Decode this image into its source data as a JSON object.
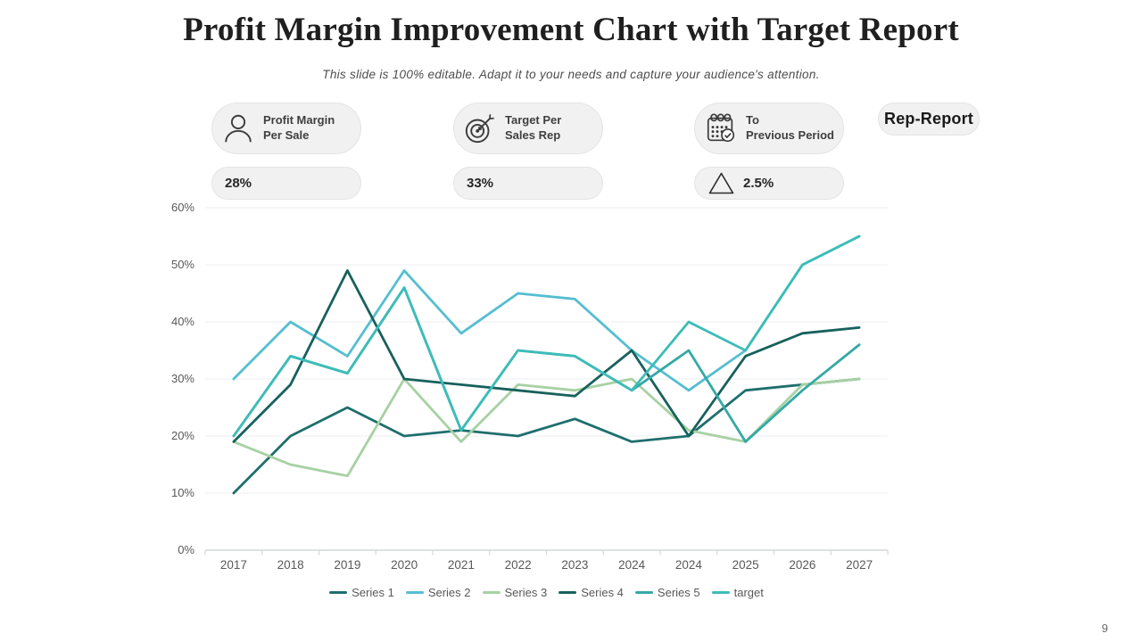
{
  "slide": {
    "title": "Profit Margin Improvement Chart with Target Report",
    "subtitle": "This slide is 100% editable. Adapt it to your needs and capture your audience's attention.",
    "page_number": "9"
  },
  "stats": [
    {
      "icon": "person-icon",
      "label_line1": "Profit Margin",
      "label_line2": "Per Sale",
      "value": "28%"
    },
    {
      "icon": "target-icon",
      "label_line1": "Target Per",
      "label_line2": "Sales Rep",
      "value": "33%"
    },
    {
      "icon": "calendar-check-icon",
      "label_line1": "To",
      "label_line2": "Previous Period",
      "value": "2.5%",
      "value_icon": "triangle-up-icon"
    }
  ],
  "rep_report_label": "Rep-Report",
  "colors": {
    "pill_background": "#f1f1f2",
    "pill_border": "#e4e4e6",
    "grid_line": "#edeff0",
    "axis_line": "#d6d8d8",
    "axis_text": "#595959"
  },
  "chart_data": {
    "type": "line",
    "title": "",
    "xlabel": "",
    "ylabel": "",
    "categories": [
      "2017",
      "2018",
      "2019",
      "2020",
      "2021",
      "2022",
      "2023",
      "2024",
      "2024",
      "2025",
      "2026",
      "2027"
    ],
    "series": [
      {
        "name": "Series 1",
        "color": "#1e6f6d",
        "values": [
          10,
          20,
          25,
          20,
          21,
          20,
          23,
          19,
          20,
          28,
          29,
          30
        ]
      },
      {
        "name": "Series 2",
        "color": "#55bed1",
        "values": [
          30,
          40,
          34,
          49,
          38,
          45,
          44,
          35,
          28,
          35,
          50,
          55
        ]
      },
      {
        "name": "Series 3",
        "color": "#a7d1a3",
        "values": [
          19,
          15,
          13,
          30,
          19,
          29,
          28,
          30,
          21,
          19,
          29,
          30
        ]
      },
      {
        "name": "Series 4",
        "color": "#17615c",
        "values": [
          19,
          29,
          49,
          30,
          29,
          28,
          27,
          35,
          20,
          34,
          38,
          39
        ]
      },
      {
        "name": "Series 5",
        "color": "#35a9a6",
        "values": [
          20,
          34,
          31,
          46,
          21,
          35,
          34,
          28,
          35,
          19,
          28,
          36
        ]
      },
      {
        "name": "target",
        "color": "#3dbcb8",
        "values": [
          20,
          34,
          31,
          46,
          21,
          35,
          34,
          28,
          40,
          35,
          50,
          55
        ]
      }
    ],
    "ylim": [
      0,
      60
    ],
    "y_ticks": [
      "0%",
      "10%",
      "20%",
      "30%",
      "40%",
      "50%",
      "60%"
    ],
    "y_tick_values": [
      0,
      10,
      20,
      30,
      40,
      50,
      60
    ],
    "grid": "horizontal",
    "legend_position": "bottom"
  }
}
